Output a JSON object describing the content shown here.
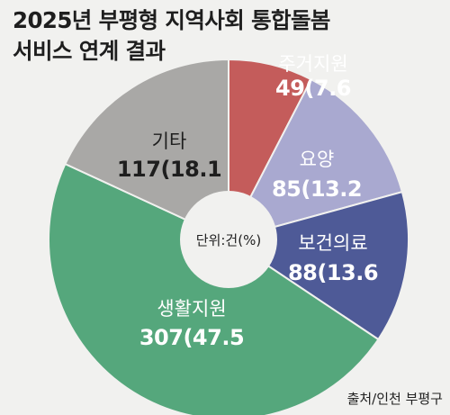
{
  "title_line1": "2025년 부평형 지역사회 통합돌봄",
  "title_line2": "서비스 연계 결과",
  "source": "출처/인천 부평구",
  "chart_data": {
    "type": "pie",
    "donut": true,
    "center_label": "단위:건(%)",
    "categories": [
      "주거지원",
      "요양",
      "보건의료",
      "생활지원",
      "기타"
    ],
    "values": [
      49,
      85,
      88,
      307,
      117
    ],
    "percent_labels": [
      "7.6",
      "13.2",
      "13.6",
      "47.5",
      "18.1"
    ],
    "colors": [
      "#c45c5b",
      "#a9a9d0",
      "#4e5a97",
      "#55a77c",
      "#a9a8a6"
    ],
    "label_colors": [
      "#ffffff",
      "#ffffff",
      "#ffffff",
      "#ffffff",
      "#1e1e1e"
    ]
  }
}
